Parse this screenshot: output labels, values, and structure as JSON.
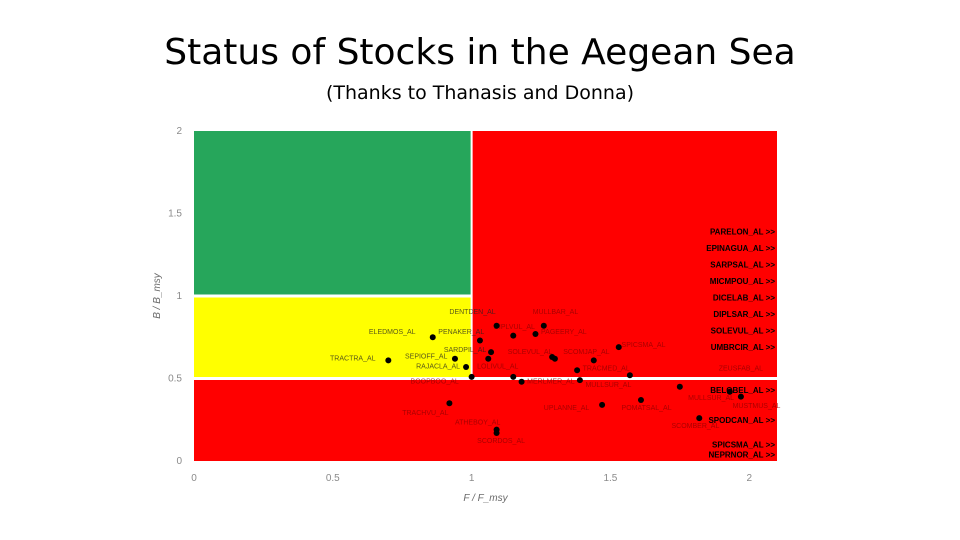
{
  "slide": {
    "title": "Status of Stocks in the Aegean Sea",
    "subtitle": "(Thanks to Thanasis and Donna)"
  },
  "colors": {
    "green_zone": "#26A65B",
    "yellow_zone": "#FFFF00",
    "red_zone": "#FF0000",
    "divider": "#ffffff",
    "point": "#000000"
  },
  "chart_data": {
    "type": "scatter",
    "xlabel": "F / F_msy",
    "ylabel": "B / B_msy",
    "xlim": [
      0,
      2.1
    ],
    "ylim": [
      0,
      2
    ],
    "x_ticks": [
      "0",
      "0.5",
      "1",
      "1.5",
      "2"
    ],
    "y_ticks": [
      "0",
      "0.5",
      "1",
      "1.5",
      "2"
    ],
    "grid": false,
    "zones": [
      {
        "name": "green",
        "x": [
          0,
          1
        ],
        "y": [
          1,
          2
        ]
      },
      {
        "name": "yellow",
        "x": [
          0,
          1
        ],
        "y": [
          0.5,
          1
        ]
      },
      {
        "name": "red-upper",
        "x": [
          1,
          2.1
        ],
        "y": [
          0.5,
          2
        ]
      },
      {
        "name": "red-lower",
        "x": [
          0,
          2.1
        ],
        "y": [
          0,
          0.5
        ]
      }
    ],
    "points": [
      {
        "label": "TRACTRA_AL",
        "x": 0.7,
        "y": 0.61
      },
      {
        "label": "ELEDMOS_AL",
        "x": 0.86,
        "y": 0.75
      },
      {
        "label": "SEPIOFF_AL",
        "x": 0.94,
        "y": 0.62
      },
      {
        "label": "RAJACLA_AL",
        "x": 0.98,
        "y": 0.57
      },
      {
        "label": "DENTDEN_AL",
        "x": 1.03,
        "y": 0.73
      },
      {
        "label": "PENAKER_AL",
        "x": 1.07,
        "y": 0.66
      },
      {
        "label": "SARDPIL_AL",
        "x": 1.06,
        "y": 0.62
      },
      {
        "label": "BOOPBOO_AL",
        "x": 1.0,
        "y": 0.51
      },
      {
        "label": "DIPLVUL_AL",
        "x": 1.09,
        "y": 0.82
      },
      {
        "label": "PAGEERY_AL",
        "x": 1.15,
        "y": 0.76
      },
      {
        "label": "SPARAUR_AL",
        "x": 1.23,
        "y": 0.77
      },
      {
        "label": "MULLBAR_AL",
        "x": 1.26,
        "y": 0.82
      },
      {
        "label": "LOLIVUL_AL",
        "x": 1.15,
        "y": 0.51
      },
      {
        "label": "MERLMER_AL",
        "x": 1.18,
        "y": 0.48
      },
      {
        "label": "SOLEVUL_AL",
        "x": 1.29,
        "y": 0.63
      },
      {
        "label": "SCOMJAP_AL",
        "x": 1.3,
        "y": 0.62
      },
      {
        "label": "TRACMED_AL",
        "x": 1.38,
        "y": 0.55
      },
      {
        "label": "MULLSUR_AL",
        "x": 1.39,
        "y": 0.49
      },
      {
        "label": "ENGRENC_AL",
        "x": 1.44,
        "y": 0.61
      },
      {
        "label": "SPICSMA_AL",
        "x": 1.53,
        "y": 0.69
      },
      {
        "label": "ZEUSFAB_AL",
        "x": 1.57,
        "y": 0.52
      },
      {
        "label": "LOPHBUD_AL",
        "x": 1.61,
        "y": 0.37
      },
      {
        "label": "POMATSAL_AL",
        "x": 1.47,
        "y": 0.34
      },
      {
        "label": "UPLANNE_AL",
        "x": 1.75,
        "y": 0.45
      },
      {
        "label": "PAGRPAG_AL",
        "x": 1.93,
        "y": 0.42
      },
      {
        "label": "MUSTMUS_AL",
        "x": 1.97,
        "y": 0.39
      },
      {
        "label": "SCOMBER_AL",
        "x": 1.82,
        "y": 0.26
      },
      {
        "label": "TRACHVU_AL",
        "x": 0.92,
        "y": 0.35
      },
      {
        "label": "ATHEBOY_AL",
        "x": 1.09,
        "y": 0.19
      },
      {
        "label": "SCORDOS_AL",
        "x": 1.09,
        "y": 0.17
      }
    ],
    "point_labels_visible": [
      {
        "text": "TRACTRA_AL",
        "x": 0.49,
        "y": 0.61,
        "anchor": "start"
      },
      {
        "text": "ELEDMOS_AL",
        "x": 0.63,
        "y": 0.77,
        "anchor": "start"
      },
      {
        "text": "SEPIOFF_AL",
        "x": 0.76,
        "y": 0.62,
        "anchor": "start"
      },
      {
        "text": "RAJACLA_AL",
        "x": 0.8,
        "y": 0.56,
        "anchor": "start"
      },
      {
        "text": "PENAKER_AL",
        "x": 0.88,
        "y": 0.77,
        "anchor": "start"
      },
      {
        "text": "SARDPIL_AL",
        "x": 0.9,
        "y": 0.66,
        "anchor": "start"
      },
      {
        "text": "DENTDEN_AL",
        "x": 0.92,
        "y": 0.89,
        "anchor": "start"
      },
      {
        "text": "MULLBAR_AL",
        "x": 1.22,
        "y": 0.89,
        "anchor": "start"
      },
      {
        "text": "DIPLVUL_AL",
        "x": 1.08,
        "y": 0.8,
        "anchor": "start"
      },
      {
        "text": "PAGEERY_AL",
        "x": 1.25,
        "y": 0.77,
        "anchor": "start"
      },
      {
        "text": "SOLEVUL_AL",
        "x": 1.13,
        "y": 0.65,
        "anchor": "start"
      },
      {
        "text": "SCOMJAP_AL",
        "x": 1.33,
        "y": 0.65,
        "anchor": "start"
      },
      {
        "text": "SPICSMA_AL",
        "x": 1.54,
        "y": 0.69,
        "anchor": "start"
      },
      {
        "text": "BOOPBOO_AL",
        "x": 0.78,
        "y": 0.47,
        "anchor": "start"
      },
      {
        "text": "LOLIVUL_AL",
        "x": 1.02,
        "y": 0.56,
        "anchor": "start"
      },
      {
        "text": "TRACMED_AL",
        "x": 1.4,
        "y": 0.55,
        "anchor": "start"
      },
      {
        "text": "MERLMER_AL",
        "x": 1.2,
        "y": 0.47,
        "anchor": "start"
      },
      {
        "text": "MULLSUR_AL",
        "x": 1.41,
        "y": 0.45,
        "anchor": "start"
      },
      {
        "text": "ZEUSFAB_AL",
        "x": 1.89,
        "y": 0.55,
        "anchor": "start"
      },
      {
        "text": "UPLANNE_AL",
        "x": 1.26,
        "y": 0.31,
        "anchor": "start"
      },
      {
        "text": "POMATSAL_AL",
        "x": 1.54,
        "y": 0.31,
        "anchor": "start"
      },
      {
        "text": "TRACHVU_AL",
        "x": 0.75,
        "y": 0.28,
        "anchor": "start"
      },
      {
        "text": "ATHEBOY_AL",
        "x": 0.94,
        "y": 0.22,
        "anchor": "start"
      },
      {
        "text": "SCORDOS_AL",
        "x": 1.02,
        "y": 0.11,
        "anchor": "start"
      },
      {
        "text": "MULLSUR_AL",
        "x": 1.78,
        "y": 0.37,
        "anchor": "start"
      },
      {
        "text": "SCOMBER_AL",
        "x": 1.72,
        "y": 0.2,
        "anchor": "start"
      },
      {
        "text": "MUSTMUS_AL",
        "x": 1.94,
        "y": 0.32,
        "anchor": "start"
      }
    ],
    "off_scale_labels": [
      {
        "text": "PARELON_AL >>",
        "y": 1.39
      },
      {
        "text": "EPINAGUA_AL >>",
        "y": 1.29
      },
      {
        "text": "SARPSAL_AL >>",
        "y": 1.19
      },
      {
        "text": "MICMPOU_AL >>",
        "y": 1.09
      },
      {
        "text": "DICELAB_AL >>",
        "y": 0.99
      },
      {
        "text": "DIPLSAR_AL >>",
        "y": 0.89
      },
      {
        "text": "SOLEVUL_AL >>",
        "y": 0.79
      },
      {
        "text": "UMBRCIR_AL >>",
        "y": 0.69
      },
      {
        "text": "BELOBEL_AL >>",
        "y": 0.43
      },
      {
        "text": "SPODCAN_AL >>",
        "y": 0.25
      },
      {
        "text": "SPICSMA_AL >>",
        "y": 0.1
      },
      {
        "text": "NEPRNOR_AL >>",
        "y": 0.04
      }
    ]
  }
}
